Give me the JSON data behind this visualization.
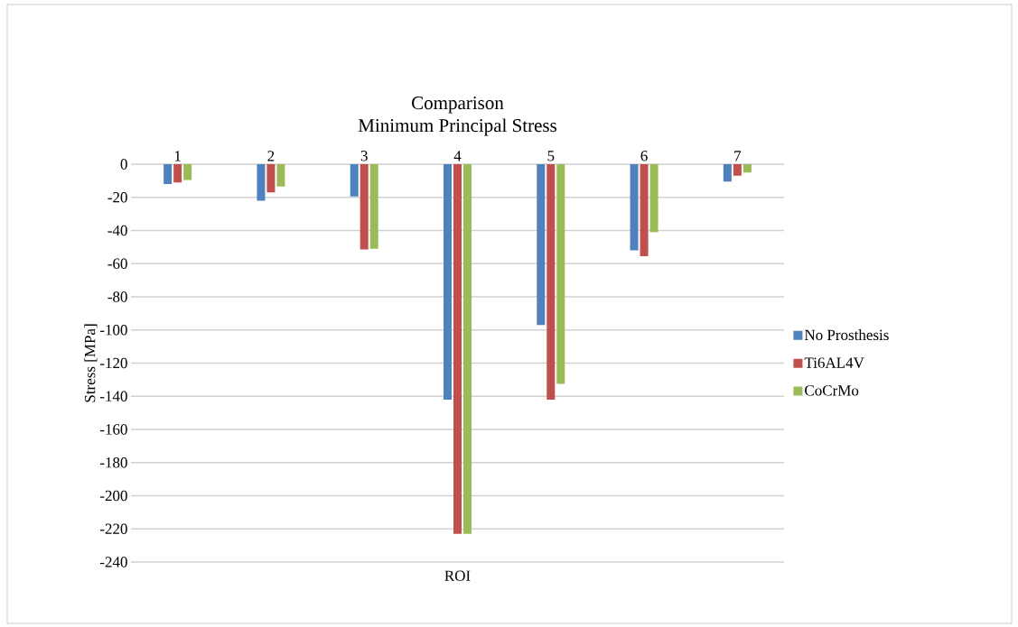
{
  "chart_data": {
    "type": "bar",
    "title": "Comparison",
    "subtitle": "Minimum Principal Stress",
    "xlabel": "ROI",
    "ylabel": "Stress [MPa]",
    "categories": [
      "1",
      "2",
      "3",
      "4",
      "5",
      "6",
      "7"
    ],
    "series": [
      {
        "name": "No Prosthesis",
        "color": "#4f81bd",
        "values": [
          -12,
          -22,
          -19.5,
          -142,
          -97,
          -52,
          -10.5
        ]
      },
      {
        "name": "Ti6AL4V",
        "color": "#c0504d",
        "values": [
          -11,
          -17,
          -51.5,
          -223,
          -142,
          -55.5,
          -7
        ]
      },
      {
        "name": "CoCrMo",
        "color": "#9bbb59",
        "values": [
          -9.5,
          -13.5,
          -51,
          -223,
          -132.5,
          -41,
          -5
        ]
      }
    ],
    "ylim": [
      -240,
      0
    ],
    "yticks": [
      0,
      -20,
      -40,
      -60,
      -80,
      -100,
      -120,
      -140,
      -160,
      -180,
      -200,
      -220,
      -240
    ],
    "grid": "y",
    "legend": "right"
  }
}
